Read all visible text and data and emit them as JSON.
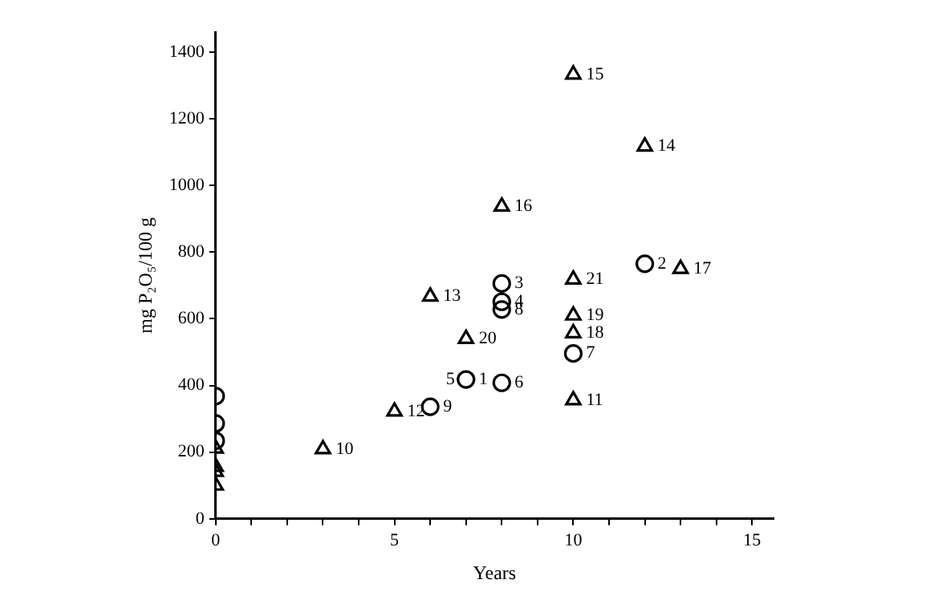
{
  "chart_data": {
    "type": "scatter",
    "xlabel": "Years",
    "ylabel": "mg P₂O₅/100 g",
    "series": [
      {
        "type": "scatter",
        "marker": "circle",
        "color": "#000000",
        "x": [
          0,
          0,
          0,
          7,
          12,
          8,
          8,
          8,
          10,
          8,
          6
        ],
        "values": [
          368,
          286,
          234,
          418,
          765,
          706,
          651,
          408,
          496,
          628,
          336
        ]
      },
      {
        "type": "scatter",
        "marker": "triangle",
        "color": "#000000",
        "x": [
          0,
          0,
          0,
          0,
          3,
          10,
          5,
          6,
          12,
          10,
          8,
          13,
          10,
          10,
          7,
          10
        ],
        "values": [
          211,
          156,
          141,
          100,
          209,
          356,
          322,
          667,
          1117,
          1333,
          937,
          750,
          557,
          610,
          540,
          718
        ]
      }
    ],
    "annotations": [
      {
        "text": "1",
        "x": 7,
        "y": 418
      },
      {
        "text": "2",
        "x": 12,
        "y": 765
      },
      {
        "text": "3",
        "x": 8,
        "y": 706
      },
      {
        "text": "4",
        "x": 8,
        "y": 651
      },
      {
        "text": "5",
        "x": 7,
        "y": 418
      },
      {
        "text": "6",
        "x": 8,
        "y": 408
      },
      {
        "text": "7",
        "x": 10,
        "y": 496
      },
      {
        "text": "8",
        "x": 8,
        "y": 628
      },
      {
        "text": "9",
        "x": 6,
        "y": 336
      },
      {
        "text": "10",
        "x": 3,
        "y": 209
      },
      {
        "text": "11",
        "x": 10,
        "y": 356
      },
      {
        "text": "12",
        "x": 5,
        "y": 322
      },
      {
        "text": "13",
        "x": 6,
        "y": 667
      },
      {
        "text": "14",
        "x": 12,
        "y": 1117
      },
      {
        "text": "15",
        "x": 10,
        "y": 1333
      },
      {
        "text": "16",
        "x": 8,
        "y": 937
      },
      {
        "text": "17",
        "x": 13,
        "y": 750
      },
      {
        "text": "18",
        "x": 10,
        "y": 557
      },
      {
        "text": "19",
        "x": 10,
        "y": 610
      },
      {
        "text": "20",
        "x": 7,
        "y": 540
      },
      {
        "text": "21",
        "x": 10,
        "y": 718
      }
    ],
    "xlim": [
      0,
      15.6
    ],
    "ylim": [
      0,
      1460
    ],
    "xticks": [
      0,
      {
        "value": 1,
        "label": null
      },
      {
        "value": 2,
        "label": null
      },
      {
        "value": 3,
        "label": null
      },
      {
        "value": 4,
        "label": null
      },
      5,
      {
        "value": 6,
        "label": null
      },
      {
        "value": 7,
        "label": null
      },
      {
        "value": 8,
        "label": null
      },
      {
        "value": 9,
        "label": null
      },
      10,
      {
        "value": 11,
        "label": null
      },
      {
        "value": 12,
        "label": null
      },
      {
        "value": 13,
        "label": null
      },
      {
        "value": 14,
        "label": null
      },
      15
    ],
    "yticks": [
      0,
      200,
      400,
      600,
      800,
      1000,
      1200,
      1400
    ],
    "grid": false,
    "legend": false
  }
}
